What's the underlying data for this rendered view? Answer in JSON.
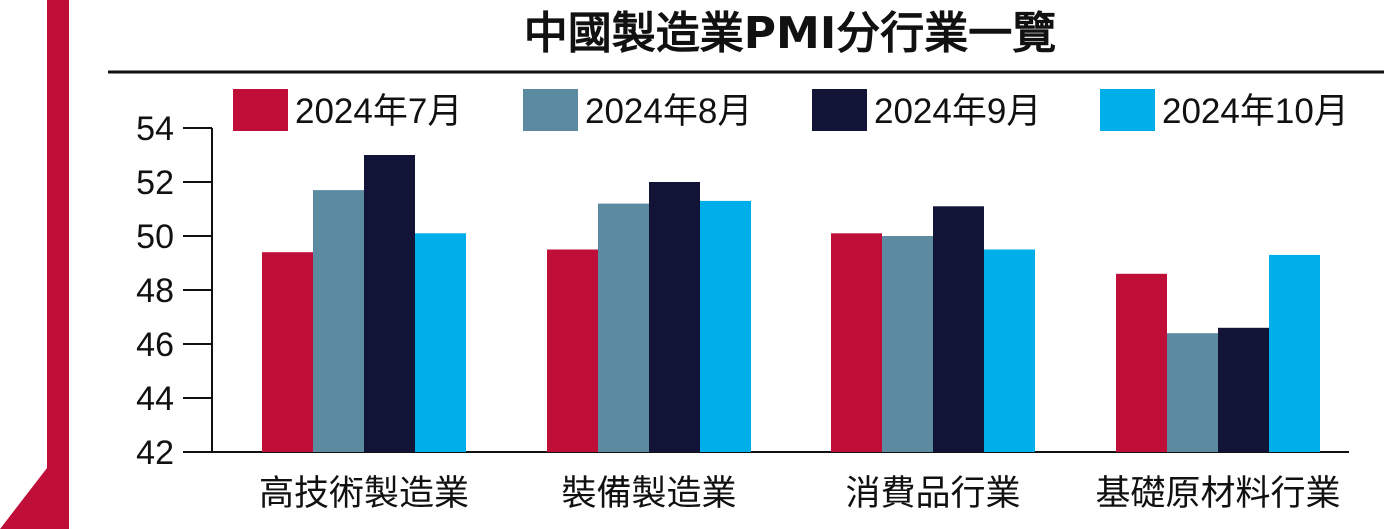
{
  "chart_data": {
    "type": "bar",
    "title": "中國製造業PMI分行業一覽",
    "categories": [
      "高技術製造業",
      "裝備製造業",
      "消費品行業",
      "基礎原材料行業"
    ],
    "series": [
      {
        "name": "2024年7月",
        "color": "#bf0f38",
        "values": [
          49.4,
          49.5,
          50.1,
          48.6
        ]
      },
      {
        "name": "2024年8月",
        "color": "#5c8aa0",
        "values": [
          51.7,
          51.2,
          50.0,
          46.4
        ]
      },
      {
        "name": "2024年9月",
        "color": "#111337",
        "values": [
          53.0,
          52.0,
          51.1,
          46.6
        ]
      },
      {
        "name": "2024年10月",
        "color": "#00aeea",
        "values": [
          50.1,
          51.3,
          49.5,
          49.3
        ]
      }
    ],
    "ylim": [
      42,
      54
    ],
    "yticks": [
      42,
      44,
      46,
      48,
      50,
      52,
      54
    ],
    "xlabel": "",
    "ylabel": "",
    "legend_position": "top",
    "grid": false
  },
  "colors": {
    "accent": "#bf0f38"
  }
}
